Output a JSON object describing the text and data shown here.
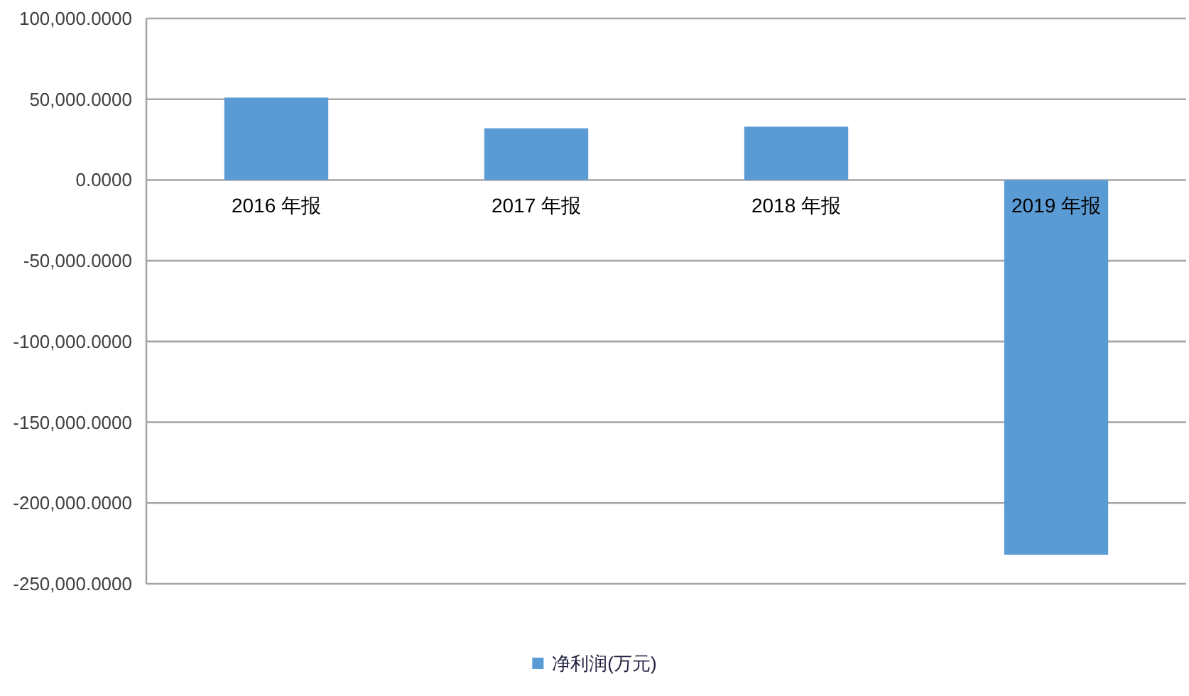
{
  "chart_data": {
    "type": "bar",
    "categories": [
      "2016 年报",
      "2017 年报",
      "2018 年报",
      "2019 年报"
    ],
    "series": [
      {
        "name": "净利润(万元)",
        "color": "#5b9bd5",
        "values": [
          51000,
          32000,
          33000,
          -232000
        ]
      }
    ],
    "ylim": [
      -250000,
      100000
    ],
    "yticks": [
      {
        "value": -250000,
        "label": "-250,000.0000"
      },
      {
        "value": -200000,
        "label": "-200,000.0000"
      },
      {
        "value": -150000,
        "label": "-150,000.0000"
      },
      {
        "value": -100000,
        "label": "-100,000.0000"
      },
      {
        "value": -50000,
        "label": "-50,000.0000"
      },
      {
        "value": 0,
        "label": "0.0000"
      },
      {
        "value": 50000,
        "label": "50,000.0000"
      },
      {
        "value": 100000,
        "label": "100,000.0000"
      }
    ],
    "grid": "y",
    "legend": "bottom"
  }
}
